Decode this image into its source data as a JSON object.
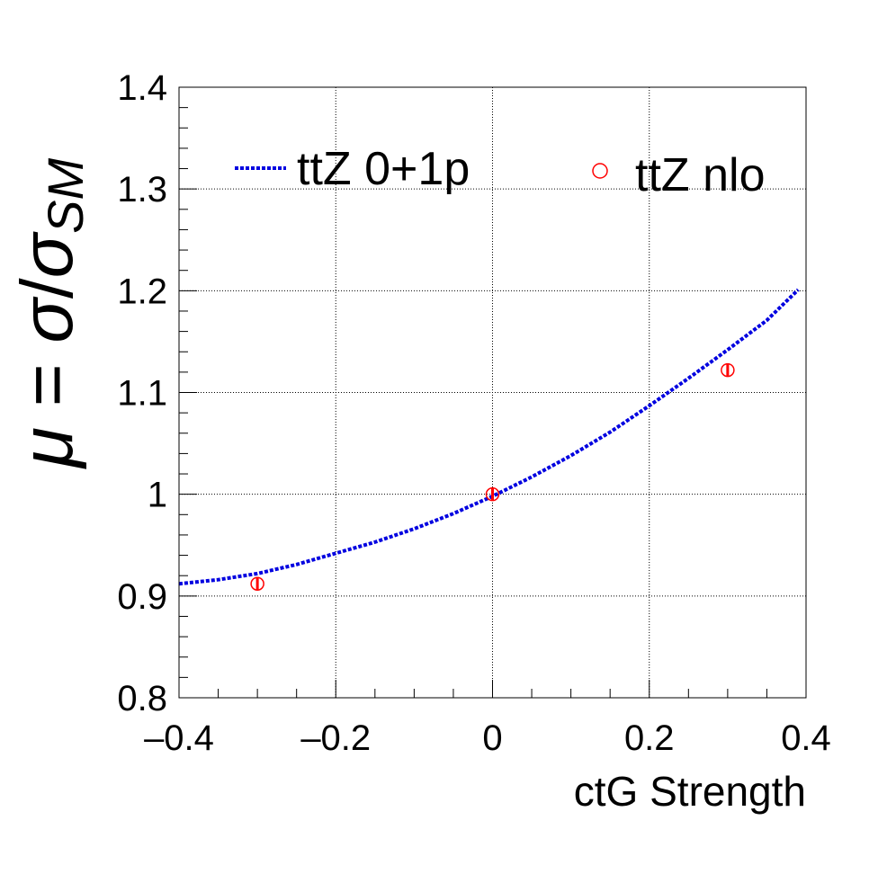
{
  "chart_data": {
    "type": "line",
    "xlabel": "ctG Strength",
    "ylabel": {
      "mu": "μ",
      "eq": " = ",
      "sigma1": "σ",
      "slash": "/",
      "sigma2": "σ",
      "sub": "SM"
    },
    "xlim": [
      -0.4,
      0.4
    ],
    "ylim": [
      0.8,
      1.4
    ],
    "x_ticks": [
      -0.4,
      -0.2,
      0,
      0.2,
      0.4
    ],
    "x_tick_labels": [
      "–0.4",
      "–0.2",
      "0",
      "0.2",
      "0.4"
    ],
    "y_ticks": [
      0.8,
      0.9,
      1.0,
      1.1,
      1.2,
      1.3,
      1.4
    ],
    "y_tick_labels": [
      "0.8",
      "0.9",
      "1",
      "1.1",
      "1.2",
      "1.3",
      "1.4"
    ],
    "grid": true,
    "legend_position": "top",
    "series": [
      {
        "name": "ttZ 0+1p",
        "style": "dotted-line",
        "color": "#0000e0",
        "x": [
          -0.4,
          -0.35,
          -0.3,
          -0.25,
          -0.2,
          -0.15,
          -0.1,
          -0.05,
          0.0,
          0.05,
          0.1,
          0.15,
          0.2,
          0.25,
          0.3,
          0.35,
          0.39
        ],
        "y": [
          0.912,
          0.916,
          0.922,
          0.931,
          0.942,
          0.953,
          0.966,
          0.981,
          0.998,
          1.017,
          1.038,
          1.061,
          1.087,
          1.114,
          1.142,
          1.171,
          1.201
        ]
      },
      {
        "name": "ttZ nlo",
        "style": "open-circle-with-error",
        "color": "#ff0000",
        "x": [
          -0.3,
          0.0,
          0.3
        ],
        "y": [
          0.912,
          1.0,
          1.122
        ],
        "yerr": [
          0.006,
          0.006,
          0.006
        ]
      }
    ]
  }
}
